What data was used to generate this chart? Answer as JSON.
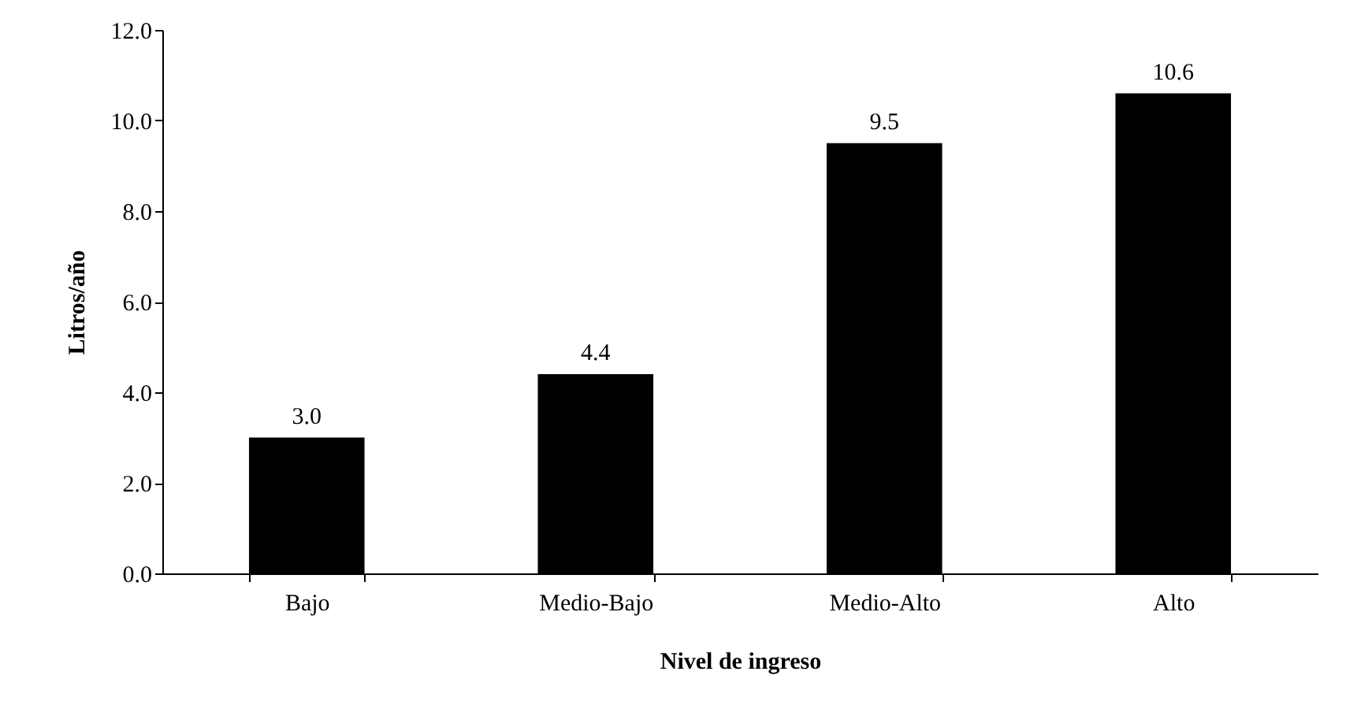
{
  "chart_data": {
    "type": "bar",
    "xlabel": "Nivel de ingreso",
    "ylabel": "Litros/año",
    "categories": [
      "Bajo",
      "Medio-Bajo",
      "Medio-Alto",
      "Alto"
    ],
    "values": [
      3.0,
      4.4,
      9.5,
      10.6
    ],
    "color": "#000000",
    "value_labels": [
      "3.0",
      "4.4",
      "9.5",
      "10.6"
    ],
    "ylim": [
      0,
      12
    ],
    "yticks": [
      {
        "value": 0,
        "label": "0.0"
      },
      {
        "value": 2,
        "label": "2.0"
      },
      {
        "value": 4,
        "label": "4.0"
      },
      {
        "value": 6,
        "label": "6.0"
      },
      {
        "value": 8,
        "label": "8.0"
      },
      {
        "value": 10,
        "label": "10.0"
      },
      {
        "value": 12,
        "label": "12.0"
      }
    ],
    "grid": false
  }
}
